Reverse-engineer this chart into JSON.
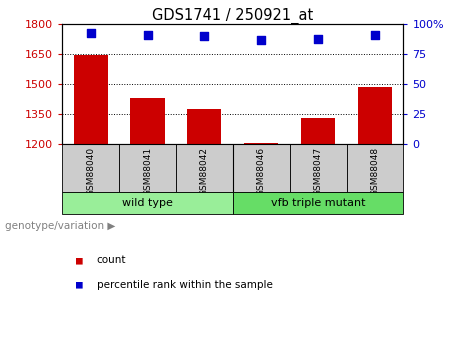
{
  "title": "GDS1741 / 250921_at",
  "samples": [
    "GSM88040",
    "GSM88041",
    "GSM88042",
    "GSM88046",
    "GSM88047",
    "GSM88048"
  ],
  "counts": [
    1648,
    1430,
    1375,
    1208,
    1330,
    1488
  ],
  "percentile_ranks": [
    93,
    91,
    90,
    87,
    88,
    91
  ],
  "ylim_left": [
    1200,
    1800
  ],
  "ylim_right": [
    0,
    100
  ],
  "yticks_left": [
    1200,
    1350,
    1500,
    1650,
    1800
  ],
  "yticks_right": [
    0,
    25,
    50,
    75,
    100
  ],
  "bar_color": "#cc0000",
  "dot_color": "#0000cc",
  "grid_color": "#000000",
  "groups": [
    {
      "label": "wild type",
      "indices": [
        0,
        1,
        2
      ],
      "color": "#99ee99"
    },
    {
      "label": "vfb triple mutant",
      "indices": [
        3,
        4,
        5
      ],
      "color": "#66dd66"
    }
  ],
  "background_plot": "#ffffff",
  "background_label": "#cccccc",
  "genotype_label": "genotype/variation",
  "bar_width": 0.6
}
